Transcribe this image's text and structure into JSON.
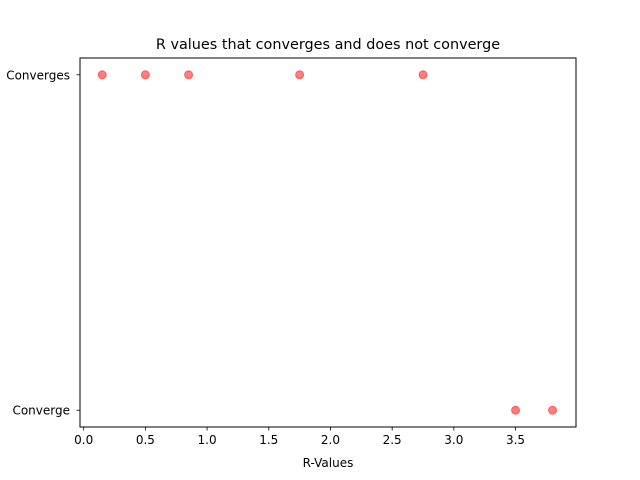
{
  "chart_data": {
    "type": "scatter",
    "title": "R values that converges and does not converge",
    "xlabel": "R-Values",
    "ylabel": "",
    "xlim": [
      -0.03,
      3.99
    ],
    "ylim": [
      -0.05,
      1.05
    ],
    "x_ticks": [
      0.0,
      0.5,
      1.0,
      1.5,
      2.0,
      2.5,
      3.0,
      3.5
    ],
    "x_tick_labels": [
      "0.0",
      "0.5",
      "1.0",
      "1.5",
      "2.0",
      "2.5",
      "3.0",
      "3.5"
    ],
    "y_categories": [
      "Converge",
      "Converges"
    ],
    "y_tick_labels": [
      "Converge",
      "Converges"
    ],
    "series": [
      {
        "color": "#ff0000",
        "alpha": 0.5,
        "points": [
          {
            "x": 0.15,
            "y": "Converges"
          },
          {
            "x": 0.5,
            "y": "Converges"
          },
          {
            "x": 0.85,
            "y": "Converges"
          },
          {
            "x": 1.75,
            "y": "Converges"
          },
          {
            "x": 2.75,
            "y": "Converges"
          },
          {
            "x": 3.5,
            "y": "Converge"
          },
          {
            "x": 3.8,
            "y": "Converge"
          }
        ]
      }
    ],
    "grid": false,
    "legend": "none"
  }
}
